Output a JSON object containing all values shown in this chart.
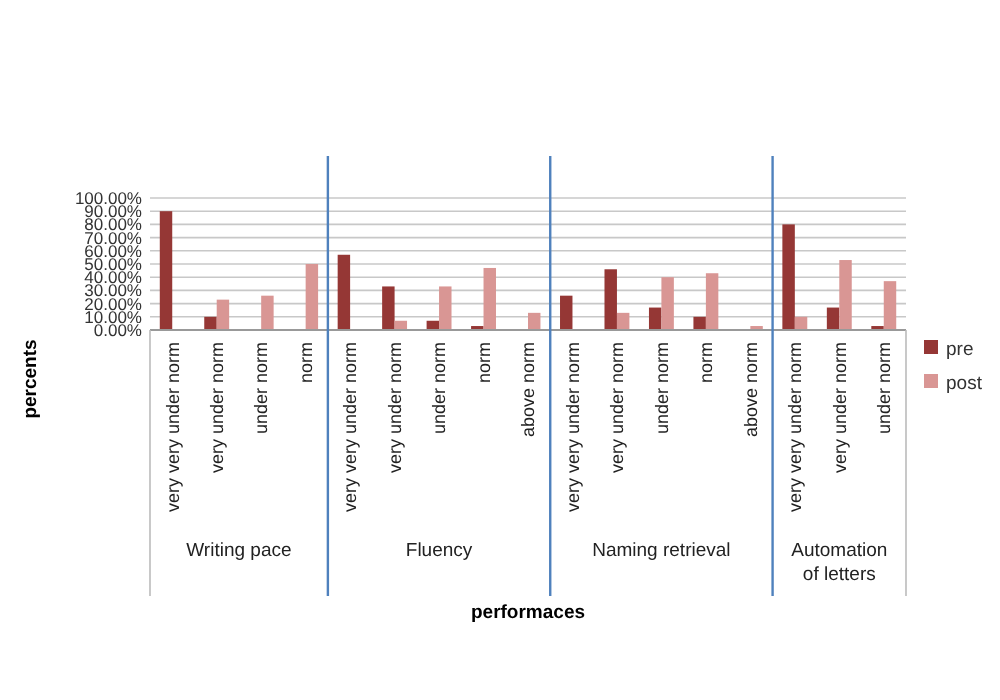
{
  "chart_data": {
    "type": "bar",
    "xlabel": "performaces",
    "ylabel": "percents",
    "categories": [
      "very very under norm",
      "very under norm",
      "under norm",
      "norm",
      "very very under norm",
      "very under norm",
      "under norm",
      "norm",
      "above norm",
      "very very under norm",
      "very under norm",
      "under norm",
      "norm",
      "above norm",
      "very very under norm",
      "very under norm",
      "under norm"
    ],
    "annotations": [
      "Writing pace",
      "Fluency",
      "Naming retrieval",
      "Automation of letters"
    ],
    "series": [
      {
        "name": "pre",
        "color": "#953735",
        "values": [
          90,
          10,
          0,
          0,
          57,
          33,
          7,
          3,
          0,
          26,
          46,
          17,
          10,
          0,
          80,
          17,
          3
        ]
      },
      {
        "name": "post",
        "color": "#d99694",
        "values": [
          0,
          23,
          26,
          50,
          0,
          7,
          33,
          47,
          13,
          0,
          13,
          40,
          43,
          3,
          10,
          53,
          37
        ]
      }
    ],
    "ylim": [
      0,
      100
    ],
    "yticks": [
      {
        "value": 0,
        "label": "0.00%"
      },
      {
        "value": 10,
        "label": "10.00%"
      },
      {
        "value": 20,
        "label": "20.00%"
      },
      {
        "value": 30,
        "label": "30.00%"
      },
      {
        "value": 40,
        "label": "40.00%"
      },
      {
        "value": 50,
        "label": "50.00%"
      },
      {
        "value": 60,
        "label": "60.00%"
      },
      {
        "value": 70,
        "label": "70.00%"
      },
      {
        "value": 80,
        "label": "80.00%"
      },
      {
        "value": 90,
        "label": "90.00%"
      },
      {
        "value": 100,
        "label": "100.00%"
      }
    ],
    "grid": "y",
    "legend": "right"
  }
}
